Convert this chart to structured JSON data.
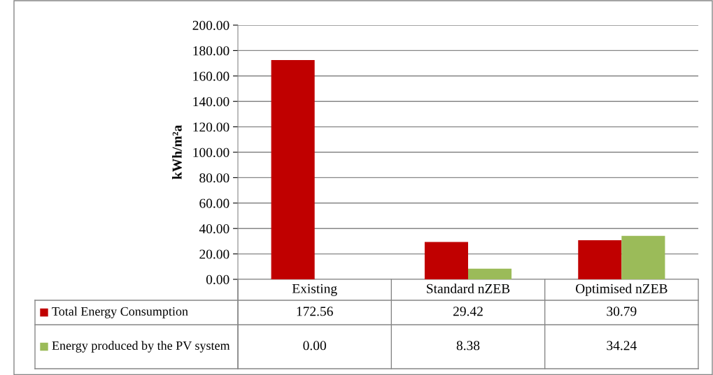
{
  "chart_data": {
    "type": "bar",
    "ylabel": "kWh/m²a",
    "categories": [
      "Existing",
      "Standard nZEB",
      "Optimised nZEB"
    ],
    "series": [
      {
        "name": "Total Energy Consumption",
        "color": "#c00000",
        "values": [
          172.56,
          29.42,
          30.79
        ],
        "value_labels": [
          "172.56",
          "29.42",
          "30.79"
        ]
      },
      {
        "name": "Energy produced by the PV system",
        "color": "#9bbb59",
        "values": [
          0.0,
          8.38,
          34.24
        ],
        "value_labels": [
          "0.00",
          "8.38",
          "34.24"
        ]
      }
    ],
    "ylim": [
      0,
      200
    ],
    "yticks": [
      {
        "value": 0,
        "label": "0.00"
      },
      {
        "value": 20,
        "label": "20.00"
      },
      {
        "value": 40,
        "label": "40.00"
      },
      {
        "value": 60,
        "label": "60.00"
      },
      {
        "value": 80,
        "label": "80.00"
      },
      {
        "value": 100,
        "label": "100.00"
      },
      {
        "value": 120,
        "label": "120.00"
      },
      {
        "value": 140,
        "label": "140.00"
      },
      {
        "value": 160,
        "label": "160.00"
      },
      {
        "value": 180,
        "label": "180.00"
      },
      {
        "value": 200,
        "label": "200.00"
      }
    ],
    "grid": "y",
    "legend": "bottom"
  }
}
